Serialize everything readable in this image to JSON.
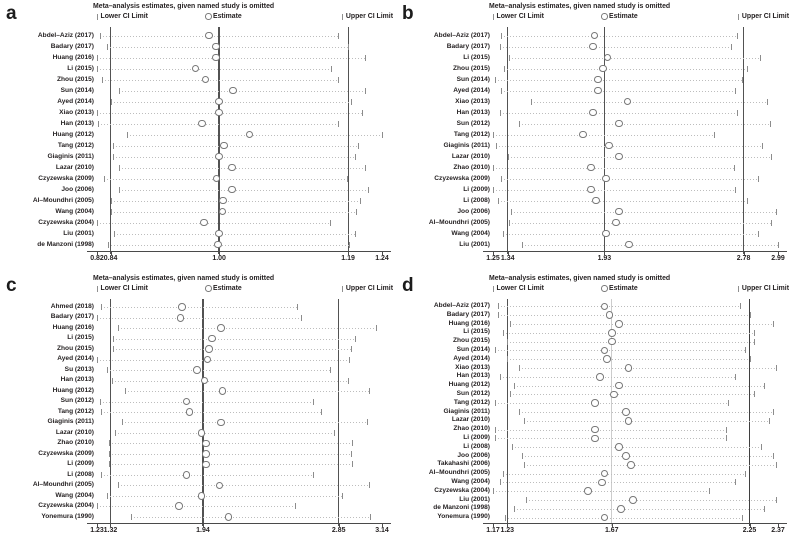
{
  "colors": {
    "background": "#ffffff",
    "text": "#231f20",
    "ref_line_dark": "#525252",
    "ref_line_light": "#cccccc",
    "dotted_line": "#bdbdbd",
    "ci_tick": "#8c8c8c",
    "marker_stroke": "#787878",
    "axis": "#4a4a4a"
  },
  "chart_data": {
    "type": "scatter",
    "variant": "leave-one-out sensitivity forest plot (4 panels)",
    "title": "Meta–analysis estimates, given named study is omitted",
    "legend": {
      "lower": "Lower CI Limit",
      "estimate": "Estimate",
      "upper": "Upper CI Limit"
    },
    "panels": [
      {
        "letter": "a",
        "axis": {
          "min": 0.82,
          "max": 1.24,
          "labels": [
            {
              "text": "0.82",
              "value": 0.82
            },
            {
              "text": "0.84",
              "value": 0.84
            },
            {
              "text": "1.00",
              "value": 1.0
            },
            {
              "text": "1.19",
              "value": 1.19
            },
            {
              "text": "1.24",
              "value": 1.24
            }
          ]
        },
        "ref_lines": {
          "lower": 0.84,
          "center": 1.0,
          "upper": 1.19,
          "center_style": "dark",
          "upper_style": "dark"
        },
        "studies": [
          {
            "name": "Abdel–Aziz (2017)",
            "lower": 0.825,
            "estimate": 0.985,
            "upper": 1.175
          },
          {
            "name": "Badary (2017)",
            "lower": 0.835,
            "estimate": 0.995,
            "upper": 1.19
          },
          {
            "name": "Huang (2016)",
            "lower": 0.82,
            "estimate": 0.995,
            "upper": 1.215
          },
          {
            "name": "Li (2015)",
            "lower": 0.82,
            "estimate": 0.965,
            "upper": 1.165
          },
          {
            "name": "Zhou (2015)",
            "lower": 0.827,
            "estimate": 0.98,
            "upper": 1.175
          },
          {
            "name": "Sun (2014)",
            "lower": 0.853,
            "estimate": 1.02,
            "upper": 1.215
          },
          {
            "name": "Ayed (2014)",
            "lower": 0.84,
            "estimate": 1.0,
            "upper": 1.195
          },
          {
            "name": "Xiao (2013)",
            "lower": 0.82,
            "estimate": 1.0,
            "upper": 1.21
          },
          {
            "name": "Han (2013)",
            "lower": 0.821,
            "estimate": 0.975,
            "upper": 1.175
          },
          {
            "name": "Huang (2012)",
            "lower": 0.864,
            "estimate": 1.045,
            "upper": 1.24
          },
          {
            "name": "Tang (2012)",
            "lower": 0.843,
            "estimate": 1.007,
            "upper": 1.205
          },
          {
            "name": "Giaginis (2011)",
            "lower": 0.843,
            "estimate": 1.0,
            "upper": 1.2
          },
          {
            "name": "Lazar (2010)",
            "lower": 0.853,
            "estimate": 1.019,
            "upper": 1.215
          },
          {
            "name": "Czyzewska (2009)",
            "lower": 0.831,
            "estimate": 0.996,
            "upper": 1.189
          },
          {
            "name": "Joo (2006)",
            "lower": 0.852,
            "estimate": 1.019,
            "upper": 1.22
          },
          {
            "name": "Al–Moundhri (2005)",
            "lower": 0.84,
            "estimate": 1.006,
            "upper": 1.207
          },
          {
            "name": "Wang (2004)",
            "lower": 0.84,
            "estimate": 1.005,
            "upper": 1.202
          },
          {
            "name": "Czyzewska (2004)",
            "lower": 0.82,
            "estimate": 0.978,
            "upper": 1.163
          },
          {
            "name": "Liu (2001)",
            "lower": 0.845,
            "estimate": 1.0,
            "upper": 1.2
          },
          {
            "name": "de Manzoni (1998)",
            "lower": 0.836,
            "estimate": 0.998,
            "upper": 1.191
          }
        ]
      },
      {
        "letter": "b",
        "axis": {
          "min": 1.25,
          "max": 2.99,
          "labels": [
            {
              "text": "1.25",
              "value": 1.25
            },
            {
              "text": "1.34",
              "value": 1.34
            },
            {
              "text": "1.93",
              "value": 1.93
            },
            {
              "text": "2.78",
              "value": 2.78
            },
            {
              "text": "2.99",
              "value": 2.99
            }
          ]
        },
        "ref_lines": {
          "lower": 1.34,
          "center": 1.93,
          "upper": 2.78,
          "center_style": "dark",
          "upper_style": "dark"
        },
        "studies": [
          {
            "name": "Abdel–Aziz (2017)",
            "lower": 1.3,
            "estimate": 1.87,
            "upper": 2.74
          },
          {
            "name": "Badary (2017)",
            "lower": 1.29,
            "estimate": 1.86,
            "upper": 2.7
          },
          {
            "name": "Li (2015)",
            "lower": 1.35,
            "estimate": 1.95,
            "upper": 2.88
          },
          {
            "name": "Zhou (2015)",
            "lower": 1.32,
            "estimate": 1.92,
            "upper": 2.8
          },
          {
            "name": "Sun (2014)",
            "lower": 1.26,
            "estimate": 1.89,
            "upper": 2.77
          },
          {
            "name": "Ayed (2014)",
            "lower": 1.3,
            "estimate": 1.89,
            "upper": 2.73
          },
          {
            "name": "Xiao (2013)",
            "lower": 1.48,
            "estimate": 2.07,
            "upper": 2.92
          },
          {
            "name": "Han (2013)",
            "lower": 1.29,
            "estimate": 1.86,
            "upper": 2.74
          },
          {
            "name": "Sun (2012)",
            "lower": 1.41,
            "estimate": 2.02,
            "upper": 2.94
          },
          {
            "name": "Tang (2012)",
            "lower": 1.25,
            "estimate": 1.8,
            "upper": 2.6
          },
          {
            "name": "Giaginis (2011)",
            "lower": 1.27,
            "estimate": 1.96,
            "upper": 2.89
          },
          {
            "name": "Lazar (2010)",
            "lower": 1.34,
            "estimate": 2.02,
            "upper": 2.95
          },
          {
            "name": "Zhao (2010)",
            "lower": 1.25,
            "estimate": 1.85,
            "upper": 2.72
          },
          {
            "name": "Czyzewska (2009)",
            "lower": 1.3,
            "estimate": 1.94,
            "upper": 2.87
          },
          {
            "name": "Li (2009)",
            "lower": 1.25,
            "estimate": 1.85,
            "upper": 2.73
          },
          {
            "name": "Li (2008)",
            "lower": 1.28,
            "estimate": 1.88,
            "upper": 2.8
          },
          {
            "name": "Joo (2006)",
            "lower": 1.36,
            "estimate": 2.02,
            "upper": 2.98
          },
          {
            "name": "Al–Moundhri (2005)",
            "lower": 1.35,
            "estimate": 2.0,
            "upper": 2.95
          },
          {
            "name": "Wang (2004)",
            "lower": 1.31,
            "estimate": 1.94,
            "upper": 2.87
          },
          {
            "name": "Liu (2001)",
            "lower": 1.43,
            "estimate": 2.08,
            "upper": 2.99
          }
        ]
      },
      {
        "letter": "c",
        "axis": {
          "min": 1.23,
          "max": 3.14,
          "labels": [
            {
              "text": "1.23",
              "value": 1.23
            },
            {
              "text": "1.32",
              "value": 1.32
            },
            {
              "text": "1.94",
              "value": 1.94
            },
            {
              "text": "2.85",
              "value": 2.85
            },
            {
              "text": "3.14",
              "value": 3.14
            }
          ]
        },
        "ref_lines": {
          "lower": 1.32,
          "center": 1.94,
          "upper": 2.85,
          "center_style": "dark",
          "upper_style": "dark"
        },
        "studies": [
          {
            "name": "Ahmed (2018)",
            "lower": 1.26,
            "estimate": 1.8,
            "upper": 2.57
          },
          {
            "name": "Badary (2017)",
            "lower": 1.23,
            "estimate": 1.79,
            "upper": 2.6
          },
          {
            "name": "Huang (2016)",
            "lower": 1.37,
            "estimate": 2.06,
            "upper": 3.1
          },
          {
            "name": "Li (2015)",
            "lower": 1.34,
            "estimate": 2.0,
            "upper": 2.96
          },
          {
            "name": "Zhou (2015)",
            "lower": 1.34,
            "estimate": 1.98,
            "upper": 2.93
          },
          {
            "name": "Ayed (2014)",
            "lower": 1.23,
            "estimate": 1.97,
            "upper": 2.92
          },
          {
            "name": "Su (2013)",
            "lower": 1.3,
            "estimate": 1.9,
            "upper": 2.79
          },
          {
            "name": "Han (2013)",
            "lower": 1.33,
            "estimate": 1.95,
            "upper": 2.91
          },
          {
            "name": "Huang (2012)",
            "lower": 1.42,
            "estimate": 2.07,
            "upper": 3.05
          },
          {
            "name": "Sun (2012)",
            "lower": 1.25,
            "estimate": 1.83,
            "upper": 2.68
          },
          {
            "name": "Tang (2012)",
            "lower": 1.26,
            "estimate": 1.85,
            "upper": 2.73
          },
          {
            "name": "Giaginis (2011)",
            "lower": 1.4,
            "estimate": 2.06,
            "upper": 3.04
          },
          {
            "name": "Lazar (2010)",
            "lower": 1.35,
            "estimate": 1.93,
            "upper": 2.82
          },
          {
            "name": "Zhao (2010)",
            "lower": 1.31,
            "estimate": 1.96,
            "upper": 2.94
          },
          {
            "name": "Czyzewska (2009)",
            "lower": 1.31,
            "estimate": 1.96,
            "upper": 2.93
          },
          {
            "name": "Li (2009)",
            "lower": 1.31,
            "estimate": 1.96,
            "upper": 2.94
          },
          {
            "name": "Li (2008)",
            "lower": 1.26,
            "estimate": 1.83,
            "upper": 2.68
          },
          {
            "name": "Al–Moundhri (2005)",
            "lower": 1.37,
            "estimate": 2.05,
            "upper": 3.05
          },
          {
            "name": "Wang (2004)",
            "lower": 1.3,
            "estimate": 1.93,
            "upper": 2.87
          },
          {
            "name": "Czyzewska (2004)",
            "lower": 1.23,
            "estimate": 1.78,
            "upper": 2.56
          },
          {
            "name": "Yonemura (1990)",
            "lower": 1.46,
            "estimate": 2.11,
            "upper": 3.06
          }
        ]
      },
      {
        "letter": "d",
        "axis": {
          "min": 1.17,
          "max": 2.37,
          "labels": [
            {
              "text": "1.17",
              "value": 1.17
            },
            {
              "text": "1.23",
              "value": 1.23
            },
            {
              "text": "1.67",
              "value": 1.67
            },
            {
              "text": "2.25",
              "value": 2.25
            },
            {
              "text": "2.37",
              "value": 2.37
            }
          ]
        },
        "ref_lines": {
          "lower": 1.23,
          "center": 1.67,
          "upper": 2.25,
          "center_style": "light",
          "upper_style": "bold"
        },
        "studies": [
          {
            "name": "Abdel–Aziz (2017)",
            "lower": 1.19,
            "estimate": 1.64,
            "upper": 2.21
          },
          {
            "name": "Badary (2017)",
            "lower": 1.19,
            "estimate": 1.66,
            "upper": 2.25
          },
          {
            "name": "Huang (2016)",
            "lower": 1.24,
            "estimate": 1.7,
            "upper": 2.35
          },
          {
            "name": "Li (2015)",
            "lower": 1.21,
            "estimate": 1.67,
            "upper": 2.27
          },
          {
            "name": "Zhou (2015)",
            "lower": 1.23,
            "estimate": 1.67,
            "upper": 2.27
          },
          {
            "name": "Sun (2014)",
            "lower": 1.18,
            "estimate": 1.64,
            "upper": 2.23
          },
          {
            "name": "Ayed (2014)",
            "lower": 1.23,
            "estimate": 1.65,
            "upper": 2.25
          },
          {
            "name": "Xiao (2013)",
            "lower": 1.28,
            "estimate": 1.74,
            "upper": 2.36
          },
          {
            "name": "Han (2013)",
            "lower": 1.2,
            "estimate": 1.62,
            "upper": 2.19
          },
          {
            "name": "Huang (2012)",
            "lower": 1.26,
            "estimate": 1.7,
            "upper": 2.31
          },
          {
            "name": "Sun (2012)",
            "lower": 1.24,
            "estimate": 1.68,
            "upper": 2.27
          },
          {
            "name": "Tang (2012)",
            "lower": 1.18,
            "estimate": 1.6,
            "upper": 2.16
          },
          {
            "name": "Giaginis (2011)",
            "lower": 1.28,
            "estimate": 1.73,
            "upper": 2.35
          },
          {
            "name": "Lazar (2010)",
            "lower": 1.3,
            "estimate": 1.74,
            "upper": 2.33
          },
          {
            "name": "Zhao (2010)",
            "lower": 1.18,
            "estimate": 1.6,
            "upper": 2.15
          },
          {
            "name": "Li (2009)",
            "lower": 1.18,
            "estimate": 1.6,
            "upper": 2.15
          },
          {
            "name": "Li (2008)",
            "lower": 1.25,
            "estimate": 1.7,
            "upper": 2.3
          },
          {
            "name": "Joo (2006)",
            "lower": 1.29,
            "estimate": 1.73,
            "upper": 2.35
          },
          {
            "name": "Takahashi (2006)",
            "lower": 1.3,
            "estimate": 1.75,
            "upper": 2.36
          },
          {
            "name": "Al–Moundhri (2005)",
            "lower": 1.21,
            "estimate": 1.64,
            "upper": 2.23
          },
          {
            "name": "Wang (2004)",
            "lower": 1.2,
            "estimate": 1.63,
            "upper": 2.19
          },
          {
            "name": "Czyzewska (2004)",
            "lower": 1.17,
            "estimate": 1.57,
            "upper": 2.08
          },
          {
            "name": "Liu (2001)",
            "lower": 1.31,
            "estimate": 1.76,
            "upper": 2.36
          },
          {
            "name": "de Manzoni (1998)",
            "lower": 1.26,
            "estimate": 1.71,
            "upper": 2.31
          },
          {
            "name": "Yonemura (1990)",
            "lower": 1.22,
            "estimate": 1.64,
            "upper": 2.22
          }
        ]
      }
    ]
  }
}
